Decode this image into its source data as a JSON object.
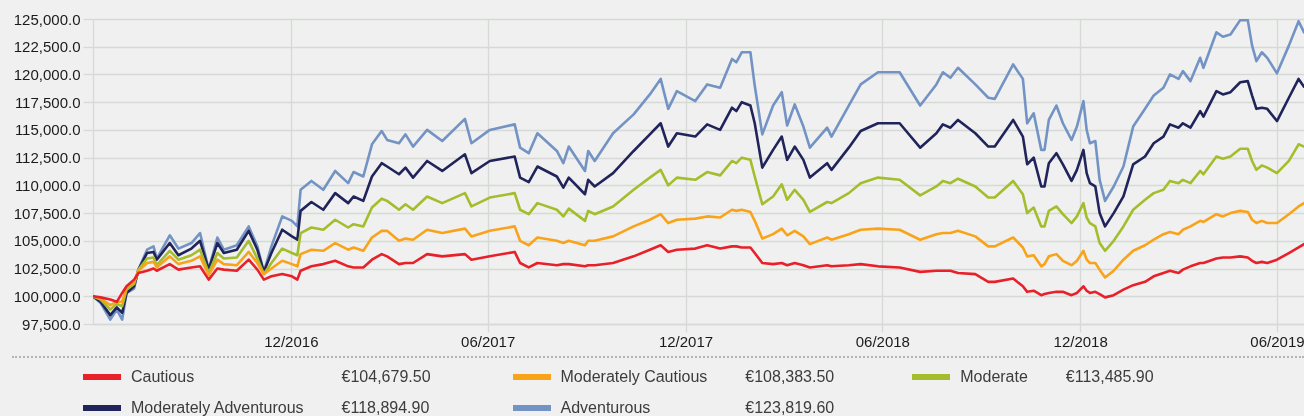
{
  "chart_data": {
    "type": "line",
    "x": [
      "2016-06-01",
      "2016-06-08",
      "2016-06-17",
      "2016-06-23",
      "2016-06-28",
      "2016-07-02",
      "2016-07-09",
      "2016-07-13",
      "2016-07-21",
      "2016-07-27",
      "2016-07-30",
      "2016-08-11",
      "2016-08-19",
      "2016-08-31",
      "2016-09-08",
      "2016-09-16",
      "2016-09-24",
      "2016-09-30",
      "2016-10-12",
      "2016-10-23",
      "2016-10-31",
      "2016-11-06",
      "2016-11-13",
      "2016-11-23",
      "2016-12-02",
      "2016-12-07",
      "2016-12-10",
      "2016-12-20",
      "2016-12-31",
      "2017-01-11",
      "2017-01-23",
      "2017-01-28",
      "2017-02-06",
      "2017-02-14",
      "2017-02-23",
      "2017-02-28",
      "2017-03-11",
      "2017-03-17",
      "2017-03-24",
      "2017-04-06",
      "2017-04-20",
      "2017-05-11",
      "2017-05-17",
      "2017-06-03",
      "2017-06-26",
      "2017-07-01",
      "2017-07-09",
      "2017-07-17",
      "2017-08-04",
      "2017-08-10",
      "2017-08-15",
      "2017-08-30",
      "2017-09-02",
      "2017-09-08",
      "2017-09-25",
      "2017-10-14",
      "2017-10-29",
      "2017-11-08",
      "2017-11-15",
      "2017-11-23",
      "2017-12-10",
      "2017-12-21",
      "2018-01-02",
      "2018-01-13",
      "2018-01-17",
      "2018-01-22",
      "2018-01-30",
      "2018-02-03",
      "2018-02-10",
      "2018-02-20",
      "2018-02-28",
      "2018-03-05",
      "2018-03-12",
      "2018-03-20",
      "2018-03-26",
      "2018-04-11",
      "2018-04-15",
      "2018-05-01",
      "2018-05-12",
      "2018-05-28",
      "2018-06-17",
      "2018-07-06",
      "2018-07-21",
      "2018-07-27",
      "2018-08-03",
      "2018-08-10",
      "2018-08-26",
      "2018-09-07",
      "2018-09-13",
      "2018-09-30",
      "2018-10-09",
      "2018-10-13",
      "2018-10-19",
      "2018-10-26",
      "2018-10-29",
      "2018-11-02",
      "2018-11-09",
      "2018-11-15",
      "2018-11-23",
      "2018-11-28",
      "2018-12-04",
      "2018-12-07",
      "2018-12-10",
      "2018-12-15",
      "2018-12-19",
      "2018-12-24",
      "2019-01-01",
      "2019-01-10",
      "2019-01-19",
      "2019-01-30",
      "2019-02-07",
      "2019-02-16",
      "2019-02-22",
      "2019-03-02",
      "2019-03-06",
      "2019-03-13",
      "2019-03-22",
      "2019-03-25",
      "2019-04-06",
      "2019-04-12",
      "2019-04-19",
      "2019-04-28",
      "2019-05-05",
      "2019-05-09",
      "2019-05-13",
      "2019-05-18",
      "2019-05-23",
      "2019-06-01",
      "2019-06-12",
      "2019-06-21",
      "2019-06-26"
    ],
    "series": [
      {
        "name": "Cautious",
        "color": "#e8202a",
        "values": [
          100000,
          99900,
          99700,
          99500,
          100300,
          100900,
          101500,
          102100,
          102300,
          102500,
          102300,
          102900,
          102400,
          102600,
          102700,
          101500,
          102500,
          102400,
          102300,
          103300,
          102400,
          101500,
          101800,
          102000,
          101800,
          101500,
          102300,
          102700,
          102900,
          103200,
          102700,
          102600,
          102600,
          103300,
          103800,
          103600,
          102900,
          103000,
          103000,
          103800,
          103600,
          103800,
          103300,
          103600,
          104000,
          103000,
          102600,
          103000,
          102800,
          102900,
          102900,
          102700,
          102800,
          102800,
          103000,
          103600,
          104200,
          104600,
          104000,
          104200,
          104300,
          104600,
          104300,
          104500,
          104500,
          104400,
          104400,
          103900,
          103000,
          102900,
          103000,
          102800,
          103000,
          102800,
          102600,
          102800,
          102700,
          102800,
          102900,
          102700,
          102600,
          102200,
          102300,
          102300,
          102300,
          102100,
          102000,
          101300,
          101300,
          101600,
          100900,
          100400,
          100500,
          100100,
          100200,
          100300,
          100400,
          100400,
          100100,
          100300,
          100900,
          100500,
          100300,
          100400,
          100200,
          99900,
          100100,
          100600,
          101000,
          101300,
          101800,
          102100,
          102300,
          102100,
          102400,
          102700,
          103000,
          103000,
          103400,
          103500,
          103500,
          103600,
          103500,
          103200,
          103000,
          103100,
          103000,
          103300,
          103900,
          104400,
          104700
        ]
      },
      {
        "name": "Moderately Cautious",
        "color": "#f9a31b",
        "values": [
          100000,
          99800,
          99200,
          99500,
          99500,
          100800,
          101300,
          102300,
          103000,
          103100,
          102600,
          103600,
          102900,
          103200,
          103600,
          101900,
          103300,
          102900,
          102800,
          104000,
          103000,
          102000,
          102500,
          103200,
          102900,
          102700,
          103800,
          104200,
          104100,
          104800,
          104200,
          104400,
          104100,
          105300,
          105900,
          105900,
          105000,
          105200,
          105100,
          106000,
          105700,
          106100,
          105400,
          105900,
          106300,
          105000,
          104600,
          105300,
          105000,
          104800,
          105000,
          104600,
          105000,
          105000,
          105400,
          106300,
          106900,
          107400,
          106600,
          106900,
          107000,
          107200,
          107100,
          107800,
          107700,
          107800,
          107600,
          106800,
          105200,
          105600,
          106100,
          105500,
          105900,
          105400,
          104700,
          105300,
          105100,
          105600,
          106000,
          106100,
          106000,
          105100,
          105600,
          105700,
          105700,
          105900,
          105400,
          104500,
          104500,
          105300,
          104400,
          103600,
          103700,
          102700,
          102900,
          103600,
          103800,
          103200,
          102800,
          103200,
          104100,
          103300,
          103000,
          103000,
          102400,
          101700,
          102300,
          103300,
          104100,
          104600,
          105100,
          105600,
          105800,
          105600,
          106000,
          106300,
          106800,
          106700,
          107400,
          107200,
          107500,
          107700,
          107600,
          106900,
          106600,
          106800,
          106600,
          106600,
          107400,
          108100,
          108400
        ]
      },
      {
        "name": "Moderate",
        "color": "#a4bd2c",
        "values": [
          100000,
          99700,
          98800,
          99300,
          99100,
          100600,
          101100,
          102400,
          103400,
          103500,
          102800,
          104100,
          103300,
          103700,
          104200,
          102100,
          103900,
          103400,
          103500,
          105000,
          103400,
          102000,
          103000,
          104300,
          103900,
          103700,
          105700,
          106200,
          106000,
          106900,
          106200,
          106500,
          106300,
          108000,
          108800,
          108600,
          107800,
          108300,
          107800,
          109000,
          108400,
          109300,
          108100,
          108900,
          109300,
          107800,
          107400,
          108400,
          107800,
          107200,
          107900,
          106800,
          107700,
          107400,
          108100,
          109600,
          110700,
          111400,
          110000,
          110700,
          110500,
          111200,
          110900,
          112200,
          112000,
          112500,
          112300,
          110800,
          108300,
          109000,
          110100,
          108700,
          109600,
          108700,
          107600,
          108500,
          108400,
          109300,
          110200,
          110700,
          110500,
          109100,
          109900,
          110400,
          110200,
          110600,
          109900,
          108900,
          108900,
          110400,
          109200,
          107500,
          108000,
          106300,
          106300,
          107700,
          108100,
          107400,
          106600,
          107200,
          108400,
          107100,
          106600,
          106300,
          104800,
          104100,
          105000,
          106300,
          107800,
          108700,
          109300,
          109600,
          110400,
          110200,
          110500,
          110200,
          111300,
          111000,
          112600,
          112400,
          112600,
          113300,
          113300,
          112200,
          111400,
          111800,
          111600,
          111100,
          112200,
          113700,
          113500
        ]
      },
      {
        "name": "Moderately Adventurous",
        "color": "#21245a",
        "values": [
          100000,
          99500,
          98300,
          99000,
          98500,
          100300,
          100900,
          102400,
          103900,
          104000,
          103300,
          104800,
          103700,
          104300,
          105000,
          102400,
          104800,
          103900,
          104200,
          105900,
          104200,
          102200,
          103900,
          106000,
          105400,
          105100,
          107700,
          108500,
          107800,
          109300,
          108400,
          109000,
          108600,
          110800,
          112000,
          111700,
          111000,
          111600,
          110700,
          112200,
          111300,
          112800,
          111100,
          112200,
          112600,
          110700,
          110300,
          111700,
          110800,
          109800,
          110700,
          109200,
          110500,
          109900,
          111100,
          113100,
          114600,
          115600,
          113500,
          114700,
          114400,
          115500,
          115000,
          117000,
          116700,
          117500,
          117200,
          115600,
          111600,
          113200,
          114400,
          112300,
          113500,
          112300,
          110700,
          112000,
          111400,
          113400,
          114900,
          115600,
          115600,
          113400,
          114700,
          115500,
          115200,
          115900,
          114700,
          113500,
          113500,
          115900,
          114400,
          111900,
          112500,
          109900,
          109900,
          112000,
          112900,
          111900,
          110400,
          111400,
          113200,
          111100,
          110200,
          109900,
          107500,
          106300,
          107500,
          109000,
          111900,
          112600,
          113800,
          114400,
          115500,
          115200,
          115600,
          115200,
          116700,
          116200,
          118500,
          118200,
          118400,
          119300,
          119400,
          118100,
          116900,
          117000,
          116900,
          115800,
          117900,
          119600,
          118900
        ]
      },
      {
        "name": "Adventurous",
        "color": "#7393c4",
        "values": [
          100000,
          99400,
          97900,
          98800,
          97900,
          100300,
          100700,
          102400,
          104200,
          104500,
          103400,
          105500,
          104300,
          104800,
          105700,
          102400,
          105300,
          104200,
          104600,
          106300,
          104500,
          102200,
          104500,
          107200,
          106800,
          106300,
          109600,
          110400,
          109600,
          111300,
          110200,
          111200,
          110800,
          113700,
          114900,
          114100,
          113800,
          114600,
          113500,
          115000,
          114000,
          116000,
          113800,
          115000,
          115500,
          113400,
          112900,
          114700,
          113100,
          112000,
          113500,
          111300,
          113100,
          112200,
          114700,
          116400,
          118200,
          119600,
          116900,
          118500,
          117600,
          119100,
          118800,
          121400,
          121100,
          122000,
          122000,
          119000,
          114600,
          117200,
          118400,
          115400,
          117300,
          115300,
          113400,
          115200,
          114400,
          117200,
          119100,
          120200,
          120200,
          117200,
          119100,
          120200,
          119700,
          120600,
          119100,
          117900,
          117800,
          120900,
          119600,
          115600,
          116500,
          113200,
          113200,
          115900,
          117200,
          115600,
          114100,
          115300,
          117600,
          115000,
          113800,
          114000,
          110500,
          108600,
          109900,
          111700,
          115300,
          116900,
          118100,
          118800,
          120000,
          119600,
          120300,
          119400,
          121500,
          120600,
          123800,
          123400,
          123600,
          124900,
          124900,
          122600,
          121200,
          122000,
          121500,
          120100,
          122600,
          124800,
          123800
        ]
      }
    ],
    "xlim": [
      "2016-06-01",
      "2019-06-26"
    ],
    "xticks": [
      {
        "value": "2016-12",
        "label": "12/2016"
      },
      {
        "value": "2017-06",
        "label": "06/2017"
      },
      {
        "value": "2017-12",
        "label": "12/2017"
      },
      {
        "value": "2018-06",
        "label": "06/2018"
      },
      {
        "value": "2018-12",
        "label": "12/2018"
      },
      {
        "value": "2019-06",
        "label": "06/2019"
      }
    ],
    "ylim": [
      97500,
      125000
    ],
    "yticks": [
      {
        "value": 97500,
        "label": "97,500.0"
      },
      {
        "value": 100000,
        "label": "100,000.0"
      },
      {
        "value": 102500,
        "label": "102,500.0"
      },
      {
        "value": 105000,
        "label": "105,000.0"
      },
      {
        "value": 107500,
        "label": "107,500.0"
      },
      {
        "value": 110000,
        "label": "110,000.0"
      },
      {
        "value": 112500,
        "label": "112,500.0"
      },
      {
        "value": 115000,
        "label": "115,000.0"
      },
      {
        "value": 117500,
        "label": "117,500.0"
      },
      {
        "value": 120000,
        "label": "120,000.0"
      },
      {
        "value": 122500,
        "label": "122,500.0"
      },
      {
        "value": 125000,
        "label": "125,000.0"
      }
    ],
    "grid": true,
    "legend": "bottom",
    "annotations": [
      "€104,679.50",
      "€108,383.50",
      "€113,485.90",
      "€118,894.90",
      "€123,819.60"
    ]
  }
}
